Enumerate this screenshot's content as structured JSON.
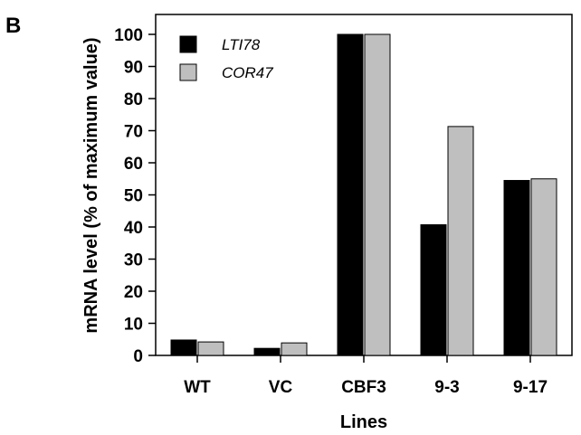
{
  "panel_label": "B",
  "chart_data": {
    "type": "bar",
    "categories": [
      "WT",
      "VC",
      "CBF3",
      "9-3",
      "9-17"
    ],
    "series": [
      {
        "name": "LTI78",
        "values": [
          4.8,
          2.2,
          100,
          40.7,
          54.5
        ],
        "color": "#000000"
      },
      {
        "name": "COR47",
        "values": [
          4.2,
          3.9,
          100,
          71.3,
          55.0
        ],
        "color": "#bfbfbf"
      }
    ],
    "xlabel": "Lines",
    "ylabel": "mRNA level (% of maximum value)",
    "ylim": [
      0,
      100
    ],
    "yticks": [
      0,
      10,
      20,
      30,
      40,
      50,
      60,
      70,
      80,
      90,
      100
    ],
    "legend": "top-left",
    "grid": false
  }
}
